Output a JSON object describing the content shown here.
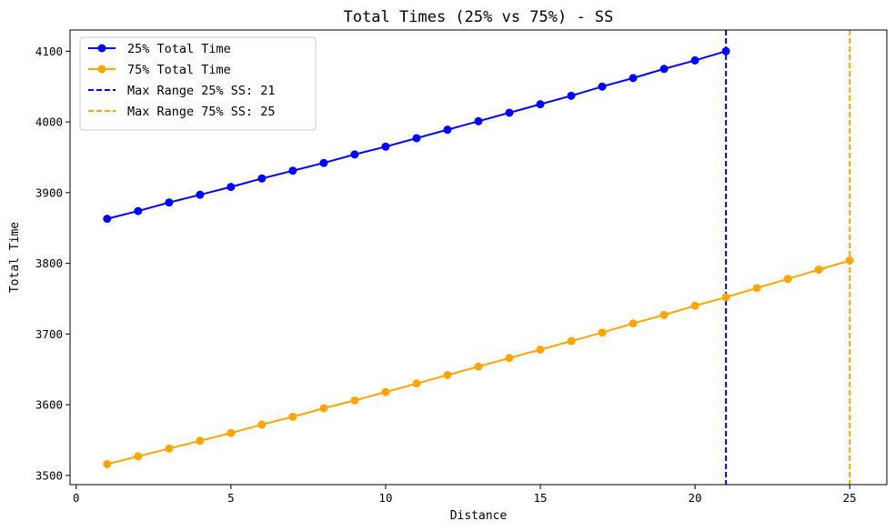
{
  "chart_data": {
    "type": "line",
    "title": "Total Times (25% vs 75%) - SS",
    "xlabel": "Distance",
    "ylabel": "Total Time",
    "xlim": [
      -0.2,
      26.2
    ],
    "ylim": [
      3487,
      4130
    ],
    "xticks": [
      0,
      5,
      10,
      15,
      20,
      25
    ],
    "yticks": [
      3500,
      3600,
      3700,
      3800,
      3900,
      4000,
      4100
    ],
    "grid": false,
    "legend_position": "top-left",
    "series": [
      {
        "name": "25% Total Time",
        "color": "#0000ff",
        "marker": "circle",
        "x": [
          1,
          2,
          3,
          4,
          5,
          6,
          7,
          8,
          9,
          10,
          11,
          12,
          13,
          14,
          15,
          16,
          17,
          18,
          19,
          20,
          21
        ],
        "y": [
          3863,
          3874,
          3886,
          3897,
          3908,
          3920,
          3931,
          3942,
          3954,
          3965,
          3977,
          3989,
          4001,
          4013,
          4025,
          4037,
          4050,
          4062,
          4075,
          4087,
          4100
        ]
      },
      {
        "name": "75% Total Time",
        "color": "#ffa500",
        "marker": "circle",
        "x": [
          1,
          2,
          3,
          4,
          5,
          6,
          7,
          8,
          9,
          10,
          11,
          12,
          13,
          14,
          15,
          16,
          17,
          18,
          19,
          20,
          21,
          22,
          23,
          24,
          25
        ],
        "y": [
          3516,
          3527,
          3538,
          3549,
          3560,
          3572,
          3583,
          3595,
          3606,
          3618,
          3630,
          3642,
          3654,
          3666,
          3678,
          3690,
          3702,
          3715,
          3727,
          3740,
          3752,
          3765,
          3778,
          3791,
          3804
        ]
      }
    ],
    "vlines": [
      {
        "name": "Max Range 25% SS: 21",
        "x": 21,
        "color": "#0000ff",
        "style": "dashed"
      },
      {
        "name": "Max Range 75% SS: 25",
        "x": 25,
        "color": "#ffa500",
        "style": "dashed"
      }
    ]
  }
}
